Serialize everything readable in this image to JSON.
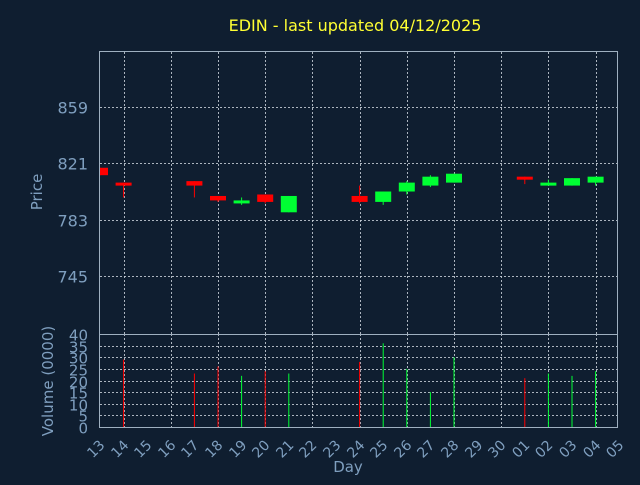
{
  "chart_data": {
    "type": "candlestick",
    "title": "EDIN - last updated 04/12/2025",
    "xlabel": "Day",
    "ylabel_price": "Price",
    "ylabel_volume": "Volume (0000)",
    "price_ticks": [
      859,
      821,
      783,
      745
    ],
    "price_ylim": [
      706,
      896
    ],
    "volume_ticks": [
      40,
      35,
      30,
      25,
      20,
      15,
      10,
      5,
      0
    ],
    "volume_ylim": [
      0,
      40
    ],
    "x_labels": [
      "13",
      "14",
      "15",
      "16",
      "17",
      "18",
      "19",
      "20",
      "21",
      "22",
      "23",
      "24",
      "25",
      "26",
      "27",
      "28",
      "29",
      "30",
      "01",
      "02",
      "03",
      "04",
      "05"
    ],
    "grid": true,
    "colors": {
      "up": "#00ff33",
      "down": "#ff0000",
      "title": "#ffff33",
      "axis": "#7f9fbf",
      "background": "#0f1e30"
    },
    "candles": [
      {
        "day": "13",
        "open": 818,
        "close": 813,
        "high": 818,
        "low": 813,
        "volume": 0
      },
      {
        "day": "14",
        "open": 808,
        "close": 806,
        "high": 808,
        "low": 798,
        "volume": 29
      },
      {
        "day": "17",
        "open": 809,
        "close": 806,
        "high": 809,
        "low": 798,
        "volume": 23
      },
      {
        "day": "18",
        "open": 799,
        "close": 796,
        "high": 799,
        "low": 795,
        "volume": 26
      },
      {
        "day": "19",
        "open": 794,
        "close": 796,
        "high": 798,
        "low": 793,
        "volume": 22
      },
      {
        "day": "20",
        "open": 800,
        "close": 795,
        "high": 800,
        "low": 794,
        "volume": 24
      },
      {
        "day": "21",
        "open": 788,
        "close": 799,
        "high": 799,
        "low": 788,
        "volume": 23
      },
      {
        "day": "24",
        "open": 799,
        "close": 795,
        "high": 806,
        "low": 794,
        "volume": 28
      },
      {
        "day": "25",
        "open": 795,
        "close": 802,
        "high": 802,
        "low": 793,
        "volume": 36
      },
      {
        "day": "26",
        "open": 802,
        "close": 808,
        "high": 809,
        "low": 800,
        "volume": 25
      },
      {
        "day": "27",
        "open": 806,
        "close": 812,
        "high": 813,
        "low": 805,
        "volume": 15
      },
      {
        "day": "28",
        "open": 808,
        "close": 814,
        "high": 814,
        "low": 808,
        "volume": 30
      },
      {
        "day": "01",
        "open": 812,
        "close": 810,
        "high": 812,
        "low": 807,
        "volume": 21
      },
      {
        "day": "02",
        "open": 806,
        "close": 808,
        "high": 810,
        "low": 806,
        "volume": 23
      },
      {
        "day": "03",
        "open": 806,
        "close": 811,
        "high": 811,
        "low": 806,
        "volume": 22
      },
      {
        "day": "04",
        "open": 808,
        "close": 812,
        "high": 812,
        "low": 806,
        "volume": 24
      }
    ]
  }
}
